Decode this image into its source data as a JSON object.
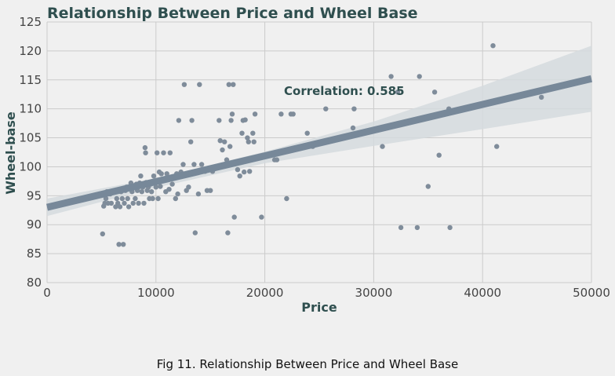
{
  "chart_data": {
    "type": "scatter",
    "title": "Relationship Between Price and Wheel Base",
    "xlabel": "Price",
    "ylabel": "Wheel-base",
    "xlim": [
      0,
      50000
    ],
    "ylim": [
      80,
      125
    ],
    "xticks": [
      "0",
      "10000",
      "20000",
      "30000",
      "40000",
      "50000"
    ],
    "yticks": [
      "80",
      "85",
      "90",
      "95",
      "100",
      "105",
      "110",
      "115",
      "120",
      "125"
    ],
    "grid": true,
    "annotation": "Correlation: 0.585",
    "regression": {
      "x": [
        0,
        50000
      ],
      "y": [
        93.0,
        115.2
      ]
    },
    "confidence_band": {
      "x": [
        0,
        10000,
        20000,
        30000,
        40000,
        50000
      ],
      "lower": [
        91.5,
        96.4,
        100.6,
        103.6,
        106.5,
        109.5
      ],
      "upper": [
        94.5,
        98.0,
        102.6,
        107.8,
        114.0,
        120.9
      ]
    },
    "colors": {
      "points": "#7f8c9a",
      "line": "#778899",
      "band": "#d5dade",
      "text": "#2f4f4f"
    },
    "series": [
      {
        "points": [
          [
            5100,
            88.4
          ],
          [
            5200,
            93.2
          ],
          [
            5300,
            93.7
          ],
          [
            5400,
            94.5
          ],
          [
            5500,
            95.7
          ],
          [
            5600,
            93.7
          ],
          [
            5800,
            95.3
          ],
          [
            5900,
            93.7
          ],
          [
            6200,
            95.7
          ],
          [
            6300,
            93.1
          ],
          [
            6400,
            94.5
          ],
          [
            6500,
            93.7
          ],
          [
            6600,
            86.6
          ],
          [
            6700,
            93.1
          ],
          [
            6800,
            95.7
          ],
          [
            6900,
            94.5
          ],
          [
            7000,
            86.6
          ],
          [
            7100,
            93.7
          ],
          [
            7200,
            95.9
          ],
          [
            7300,
            96.5
          ],
          [
            7400,
            94.5
          ],
          [
            7500,
            93.1
          ],
          [
            7600,
            96.3
          ],
          [
            7700,
            97.2
          ],
          [
            7800,
            95.7
          ],
          [
            7900,
            93.7
          ],
          [
            8000,
            96.5
          ],
          [
            8100,
            94.5
          ],
          [
            8200,
            97.0
          ],
          [
            8300,
            95.9
          ],
          [
            8400,
            93.7
          ],
          [
            8500,
            97.2
          ],
          [
            8600,
            98.4
          ],
          [
            8700,
            95.7
          ],
          [
            8800,
            96.5
          ],
          [
            8900,
            93.7
          ],
          [
            9000,
            103.3
          ],
          [
            9050,
            102.4
          ],
          [
            9100,
            97.3
          ],
          [
            9200,
            95.9
          ],
          [
            9300,
            96.5
          ],
          [
            9400,
            94.5
          ],
          [
            9500,
            97.0
          ],
          [
            9600,
            95.7
          ],
          [
            9700,
            94.5
          ],
          [
            9800,
            98.4
          ],
          [
            9900,
            97.2
          ],
          [
            10000,
            96.5
          ],
          [
            10100,
            102.4
          ],
          [
            10200,
            94.5
          ],
          [
            10300,
            99.1
          ],
          [
            10400,
            96.6
          ],
          [
            10500,
            98.8
          ],
          [
            10700,
            102.4
          ],
          [
            10900,
            95.7
          ],
          [
            11000,
            98.8
          ],
          [
            11200,
            96.1
          ],
          [
            11300,
            102.4
          ],
          [
            11500,
            97.0
          ],
          [
            11800,
            94.5
          ],
          [
            11900,
            98.8
          ],
          [
            12000,
            95.3
          ],
          [
            12100,
            108.0
          ],
          [
            12300,
            99.1
          ],
          [
            12500,
            100.4
          ],
          [
            12600,
            114.2
          ],
          [
            12800,
            95.9
          ],
          [
            13000,
            96.5
          ],
          [
            13200,
            104.3
          ],
          [
            13300,
            108.0
          ],
          [
            13500,
            100.4
          ],
          [
            13600,
            88.6
          ],
          [
            13700,
            99.1
          ],
          [
            13900,
            95.3
          ],
          [
            14000,
            114.2
          ],
          [
            14200,
            100.4
          ],
          [
            14500,
            99.2
          ],
          [
            14700,
            95.9
          ],
          [
            15000,
            95.9
          ],
          [
            15200,
            99.2
          ],
          [
            15500,
            99.8
          ],
          [
            15800,
            108.0
          ],
          [
            15900,
            104.5
          ],
          [
            16100,
            102.9
          ],
          [
            16300,
            104.3
          ],
          [
            16500,
            101.2
          ],
          [
            16600,
            88.6
          ],
          [
            16700,
            114.2
          ],
          [
            16800,
            103.5
          ],
          [
            16900,
            108.0
          ],
          [
            17000,
            109.1
          ],
          [
            17100,
            114.2
          ],
          [
            17200,
            91.3
          ],
          [
            17500,
            99.5
          ],
          [
            17700,
            98.4
          ],
          [
            17900,
            105.8
          ],
          [
            18000,
            108.0
          ],
          [
            18100,
            99.1
          ],
          [
            18200,
            108.1
          ],
          [
            18400,
            105.0
          ],
          [
            18500,
            104.3
          ],
          [
            18600,
            99.2
          ],
          [
            18900,
            105.8
          ],
          [
            19000,
            104.3
          ],
          [
            19100,
            109.1
          ],
          [
            19700,
            91.3
          ],
          [
            20900,
            101.2
          ],
          [
            21100,
            101.2
          ],
          [
            21500,
            109.1
          ],
          [
            22000,
            94.5
          ],
          [
            22400,
            109.1
          ],
          [
            22600,
            109.1
          ],
          [
            23900,
            105.8
          ],
          [
            24400,
            103.5
          ],
          [
            25600,
            110.0
          ],
          [
            28100,
            106.7
          ],
          [
            28200,
            110.0
          ],
          [
            30800,
            103.5
          ],
          [
            31600,
            115.6
          ],
          [
            32200,
            112.9
          ],
          [
            32500,
            89.5
          ],
          [
            34000,
            89.5
          ],
          [
            34200,
            115.6
          ],
          [
            35000,
            96.6
          ],
          [
            35600,
            112.9
          ],
          [
            36000,
            102.0
          ],
          [
            36900,
            110.0
          ],
          [
            37000,
            89.5
          ],
          [
            40960,
            120.9
          ],
          [
            41300,
            103.5
          ],
          [
            45400,
            112.0
          ]
        ]
      }
    ]
  },
  "caption": "Fig 11. Relationship Between Price and Wheel Base"
}
